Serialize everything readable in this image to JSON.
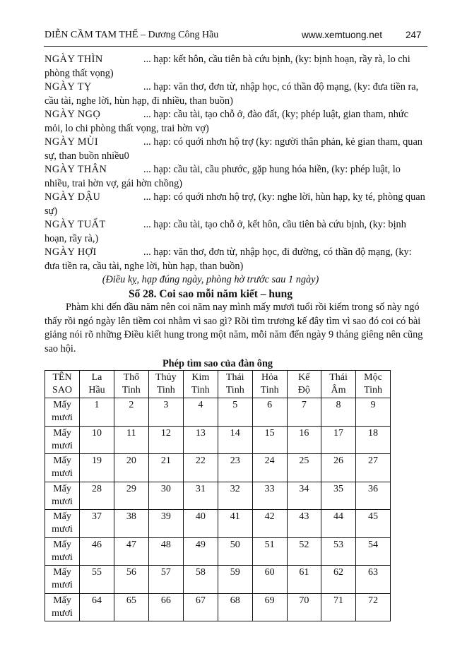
{
  "header": {
    "title": "DIỄN CẦM TAM THẾ – Dương Công Hầu",
    "website": "www.xemtuong.net",
    "page_number": "247"
  },
  "entries": [
    {
      "day": "NGÀY  THÌN",
      "text": "...  hạp: kết hôn, cầu tiên bà cứu bịnh, (ky: bịnh hoạn, rầy rà, lo chi phòng thất vọng)"
    },
    {
      "day": "NGÀY  TỴ",
      "text": "...  hạp: văn thơ, đơn từ, nhập học, có thần độ mạng, (ky: đưa tiền ra, cầu tài, nghe lời, hùn hạp, đi nhiều, than buồn)"
    },
    {
      "day": "NGÀY  NGỌ",
      "text": "...  hạp:  cầu tài, tạo chỗ ở, đào đất, (ky; phép luật, gian tham, nhức mỏi, lo chi phòng thất vọng, trai hờn vợ)"
    },
    {
      "day": "NGÀY  MÙI",
      "text": "...  hạp: có quới nhơn hộ trợ (ky: người thân phản, kẻ gian tham, quan sự, than buồn nhiều0"
    },
    {
      "day": "NGÀY  THÂN",
      "text": "...  hạp: cầu tài, cầu phước, gặp hung hóa hiền, (ky: phép luật, lo nhiều, trai hờn vợ, gái hờn chồng)"
    },
    {
      "day": "NGÀY  DẬU",
      "text": "...  hạp: có quới nhơn hộ trợ, (ky: nghe lời, hùn hạp, kỵ té, phòng quan sự)"
    },
    {
      "day": "NGÀY  TUẤT",
      "text": "...  hạp: cầu tài, tạo chỗ ở, kết hôn, cầu tiên bà cứu bịnh,  (ky: bịnh hoạn, rầy rà,)"
    },
    {
      "day": "NGÀY  HỢI",
      "text": "...  hạp: văn thơ, đơn từ, nhập học, đi đường, có thần độ mạng, (ky: đưa tiền ra, cầu tài, nghe lời, hùn hạp, than buồn)"
    }
  ],
  "note": "(Điều kỵ, hạp đúng ngày, phòng hờ trước sau 1 ngày)",
  "section_title": "Số 28. Coi sao mỗi năm kiết – hung",
  "paragraph": "Phàm khi đến đầu năm nên coi năm nay mình mấy mươi tuổi rồi kiếm trong số này ngó thấy rồi ngó ngày lên tiềm coi nhằm vì sao gì? Rồi tìm trương kế đây tìm vì sao đó coi có bài giảng nói rõ những Điều kiết hung trong một năm, mỗi năm đến ngày 9  tháng giêng nên cũng sao hội.",
  "table": {
    "caption": "Phép tìm sao của đàn ông",
    "headers": [
      [
        "TÊN",
        "SAO"
      ],
      [
        "La",
        "Hầu"
      ],
      [
        "Thổ",
        "Tinh"
      ],
      [
        "Thủy",
        "Tinh"
      ],
      [
        "Kim",
        "Tinh"
      ],
      [
        "Thái",
        "Tinh"
      ],
      [
        "Hỏa",
        "Tinh"
      ],
      [
        "Kế",
        "Độ"
      ],
      [
        "Thái",
        "Âm"
      ],
      [
        "Mộc",
        "Tinh"
      ]
    ],
    "rows": [
      {
        "label": [
          "Mấy",
          "mươi"
        ],
        "values": [
          "1",
          "2",
          "3",
          "4",
          "5",
          "6",
          "7",
          "8",
          "9"
        ]
      },
      {
        "label": [
          "Mấy",
          "mươi"
        ],
        "values": [
          "10",
          "11",
          "12",
          "13",
          "14",
          "15",
          "16",
          "17",
          "18"
        ]
      },
      {
        "label": [
          "Mấy",
          "mươi"
        ],
        "values": [
          "19",
          "20",
          "21",
          "22",
          "23",
          "24",
          "25",
          "26",
          "27"
        ]
      },
      {
        "label": [
          "Mấy",
          "mươi"
        ],
        "values": [
          "28",
          "29",
          "30",
          "31",
          "32",
          "33",
          "34",
          "35",
          "36"
        ]
      },
      {
        "label": [
          "Mấy",
          "mươi"
        ],
        "values": [
          "37",
          "38",
          "39",
          "40",
          "41",
          "42",
          "43",
          "44",
          "45"
        ]
      },
      {
        "label": [
          "Mấy",
          "mươi"
        ],
        "values": [
          "46",
          "47",
          "48",
          "49",
          "50",
          "51",
          "52",
          "53",
          "54"
        ]
      },
      {
        "label": [
          "Mấy",
          "mươi"
        ],
        "values": [
          "55",
          "56",
          "57",
          "58",
          "59",
          "60",
          "61",
          "62",
          "63"
        ]
      },
      {
        "label": [
          "Mấy",
          "mươi"
        ],
        "values": [
          "64",
          "65",
          "66",
          "67",
          "68",
          "69",
          "70",
          "71",
          "72"
        ]
      }
    ]
  }
}
